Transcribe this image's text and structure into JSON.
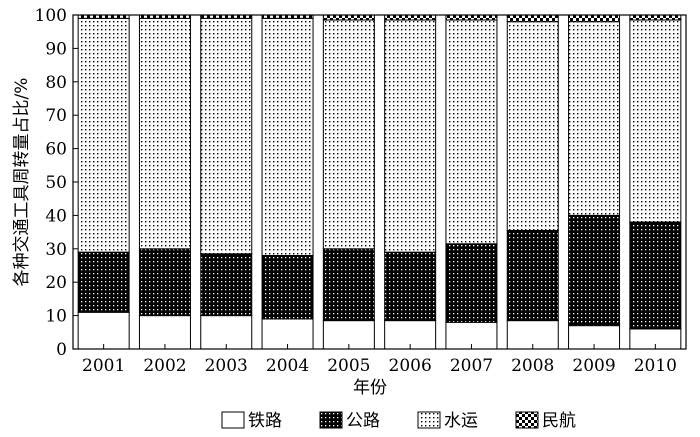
{
  "chart_data": {
    "type": "bar",
    "stacked": true,
    "categories": [
      "2001",
      "2002",
      "2003",
      "2004",
      "2005",
      "2006",
      "2007",
      "2008",
      "2009",
      "2010"
    ],
    "series": [
      {
        "name": "铁路",
        "values": [
          11,
          10,
          10,
          9,
          8.5,
          8.5,
          8,
          8.5,
          7,
          6
        ],
        "pattern": "white"
      },
      {
        "name": "公路",
        "values": [
          18,
          20,
          18.5,
          19,
          21.5,
          20.5,
          23.5,
          27,
          33,
          32
        ],
        "pattern": "dense-black-dots"
      },
      {
        "name": "水运",
        "values": [
          70,
          69,
          70.5,
          71,
          68.5,
          69.5,
          67,
          62.5,
          58,
          60.5
        ],
        "pattern": "sparse-dots"
      },
      {
        "name": "民航",
        "values": [
          1,
          1,
          1,
          1,
          1.5,
          1.5,
          1.5,
          2,
          2,
          1.5
        ],
        "pattern": "checker"
      }
    ],
    "title": "",
    "xlabel": "年份",
    "ylabel": "各种交通工具周转量占比/%",
    "ylim": [
      0,
      100
    ],
    "yticks": [
      0,
      10,
      20,
      30,
      40,
      50,
      60,
      70,
      80,
      90,
      100
    ],
    "grid": false,
    "legend": "bottom"
  }
}
